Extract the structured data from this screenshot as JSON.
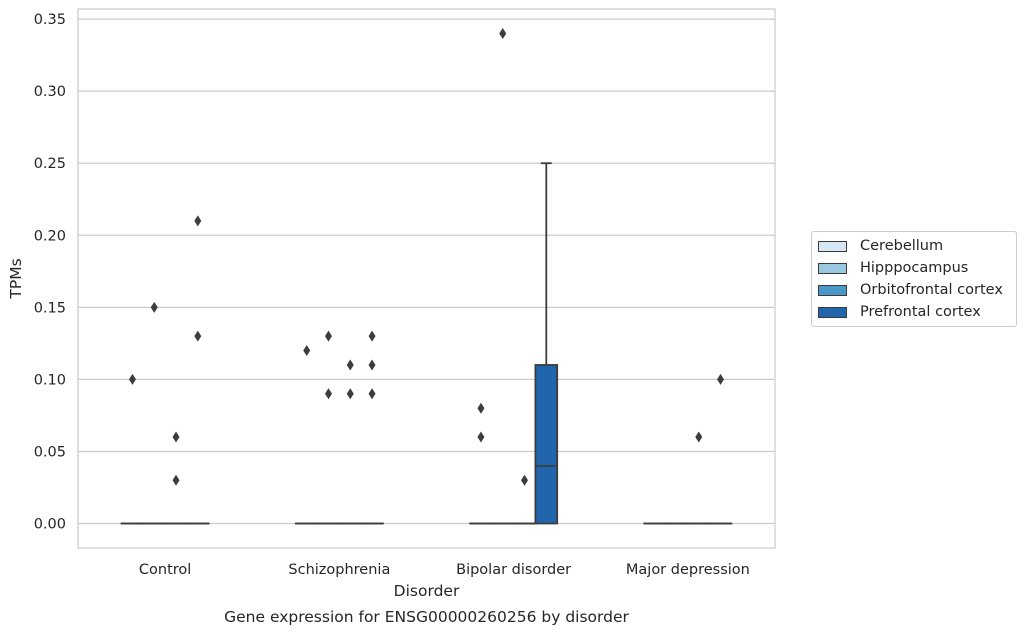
{
  "chart_data": {
    "type": "box",
    "title": "Gene expression for ENSG00000260256 by disorder",
    "xlabel": "Disorder",
    "ylabel": "TPMs",
    "categories": [
      "Control",
      "Schizophrenia",
      "Bipolar disorder",
      "Major depression"
    ],
    "ylim": [
      -0.017,
      0.357
    ],
    "yticks": [
      "0.00",
      "0.05",
      "0.10",
      "0.15",
      "0.20",
      "0.25",
      "0.30",
      "0.35"
    ],
    "grid": true,
    "legend_position": "right",
    "series": [
      {
        "name": "Cerebellum",
        "color": "#d6e6f4",
        "boxes": [
          {
            "q1": 0,
            "median": 0,
            "q3": 0,
            "whisker_low": 0,
            "whisker_high": 0,
            "outliers": [
              0.1
            ]
          },
          {
            "q1": 0,
            "median": 0,
            "q3": 0,
            "whisker_low": 0,
            "whisker_high": 0,
            "outliers": [
              0.12
            ]
          },
          {
            "q1": 0,
            "median": 0,
            "q3": 0,
            "whisker_low": 0,
            "whisker_high": 0,
            "outliers": [
              0.06,
              0.08
            ]
          },
          {
            "q1": 0,
            "median": 0,
            "q3": 0,
            "whisker_low": 0,
            "whisker_high": 0,
            "outliers": []
          }
        ]
      },
      {
        "name": "Hipppocampus",
        "color": "#9ac8e0",
        "boxes": [
          {
            "q1": 0,
            "median": 0,
            "q3": 0,
            "whisker_low": 0,
            "whisker_high": 0,
            "outliers": [
              0.15
            ]
          },
          {
            "q1": 0,
            "median": 0,
            "q3": 0,
            "whisker_low": 0,
            "whisker_high": 0,
            "outliers": [
              0.09,
              0.13
            ]
          },
          {
            "q1": 0,
            "median": 0,
            "q3": 0,
            "whisker_low": 0,
            "whisker_high": 0,
            "outliers": [
              0.34
            ]
          },
          {
            "q1": 0,
            "median": 0,
            "q3": 0,
            "whisker_low": 0,
            "whisker_high": 0,
            "outliers": []
          }
        ]
      },
      {
        "name": "Orbitofrontal cortex",
        "color": "#4a98c9",
        "boxes": [
          {
            "q1": 0,
            "median": 0,
            "q3": 0,
            "whisker_low": 0,
            "whisker_high": 0,
            "outliers": [
              0.03,
              0.06
            ]
          },
          {
            "q1": 0,
            "median": 0,
            "q3": 0,
            "whisker_low": 0,
            "whisker_high": 0,
            "outliers": [
              0.09,
              0.11
            ]
          },
          {
            "q1": 0,
            "median": 0,
            "q3": 0,
            "whisker_low": 0,
            "whisker_high": 0,
            "outliers": [
              0.03
            ]
          },
          {
            "q1": 0,
            "median": 0,
            "q3": 0,
            "whisker_low": 0,
            "whisker_high": 0,
            "outliers": [
              0.06
            ]
          }
        ]
      },
      {
        "name": "Prefrontal cortex",
        "color": "#2166ac",
        "boxes": [
          {
            "q1": 0,
            "median": 0,
            "q3": 0,
            "whisker_low": 0,
            "whisker_high": 0,
            "outliers": [
              0.13,
              0.21
            ]
          },
          {
            "q1": 0,
            "median": 0,
            "q3": 0,
            "whisker_low": 0,
            "whisker_high": 0,
            "outliers": [
              0.09,
              0.11,
              0.13
            ]
          },
          {
            "q1": 0,
            "median": 0.04,
            "q3": 0.11,
            "whisker_low": 0,
            "whisker_high": 0.25,
            "outliers": []
          },
          {
            "q1": 0,
            "median": 0,
            "q3": 0,
            "whisker_low": 0,
            "whisker_high": 0,
            "outliers": [
              0.1
            ]
          }
        ]
      }
    ]
  }
}
